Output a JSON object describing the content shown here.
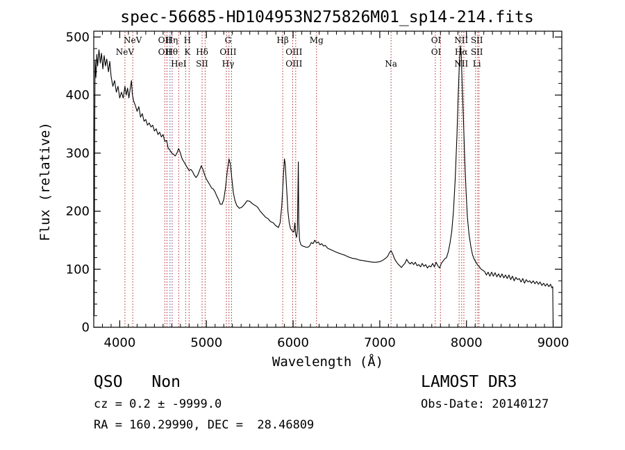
{
  "chart_data": {
    "type": "line",
    "title": "spec-56685-HD104953N275826M01_sp14-214.fits",
    "xlabel": "Wavelength (Å)",
    "ylabel": "Flux (relative)",
    "xlim": [
      3700,
      9100
    ],
    "ylim": [
      0,
      510
    ],
    "x_ticks": [
      4000,
      5000,
      6000,
      7000,
      8000,
      9000
    ],
    "y_ticks": [
      0,
      100,
      200,
      300,
      400,
      500
    ],
    "grid": false,
    "series": [
      {
        "name": "spectrum",
        "color": "#000000",
        "points": [
          [
            3705,
            20
          ],
          [
            3710,
            300
          ],
          [
            3715,
            460
          ],
          [
            3725,
            430
          ],
          [
            3735,
            470
          ],
          [
            3745,
            450
          ],
          [
            3760,
            478
          ],
          [
            3775,
            455
          ],
          [
            3790,
            472
          ],
          [
            3805,
            445
          ],
          [
            3820,
            468
          ],
          [
            3835,
            450
          ],
          [
            3850,
            462
          ],
          [
            3870,
            440
          ],
          [
            3885,
            458
          ],
          [
            3900,
            432
          ],
          [
            3920,
            415
          ],
          [
            3940,
            425
          ],
          [
            3960,
            405
          ],
          [
            3980,
            415
          ],
          [
            4000,
            395
          ],
          [
            4020,
            405
          ],
          [
            4040,
            395
          ],
          [
            4060,
            415
          ],
          [
            4075,
            400
          ],
          [
            4090,
            412
          ],
          [
            4105,
            395
          ],
          [
            4120,
            410
          ],
          [
            4135,
            425
          ],
          [
            4145,
            402
          ],
          [
            4160,
            390
          ],
          [
            4180,
            382
          ],
          [
            4200,
            372
          ],
          [
            4220,
            380
          ],
          [
            4240,
            362
          ],
          [
            4260,
            368
          ],
          [
            4280,
            355
          ],
          [
            4300,
            358
          ],
          [
            4320,
            348
          ],
          [
            4340,
            352
          ],
          [
            4360,
            345
          ],
          [
            4380,
            348
          ],
          [
            4400,
            338
          ],
          [
            4420,
            342
          ],
          [
            4440,
            332
          ],
          [
            4460,
            336
          ],
          [
            4480,
            328
          ],
          [
            4500,
            332
          ],
          [
            4520,
            320
          ],
          [
            4540,
            322
          ],
          [
            4560,
            308
          ],
          [
            4580,
            305
          ],
          [
            4600,
            300
          ],
          [
            4620,
            298
          ],
          [
            4640,
            295
          ],
          [
            4660,
            300
          ],
          [
            4680,
            308
          ],
          [
            4700,
            300
          ],
          [
            4720,
            290
          ],
          [
            4740,
            285
          ],
          [
            4760,
            280
          ],
          [
            4780,
            275
          ],
          [
            4800,
            270
          ],
          [
            4820,
            272
          ],
          [
            4840,
            268
          ],
          [
            4860,
            262
          ],
          [
            4880,
            258
          ],
          [
            4900,
            262
          ],
          [
            4920,
            270
          ],
          [
            4940,
            278
          ],
          [
            4960,
            272
          ],
          [
            4980,
            262
          ],
          [
            5000,
            255
          ],
          [
            5020,
            250
          ],
          [
            5040,
            245
          ],
          [
            5060,
            240
          ],
          [
            5080,
            238
          ],
          [
            5100,
            233
          ],
          [
            5120,
            226
          ],
          [
            5140,
            220
          ],
          [
            5160,
            212
          ],
          [
            5180,
            212
          ],
          [
            5200,
            220
          ],
          [
            5220,
            240
          ],
          [
            5240,
            268
          ],
          [
            5260,
            290
          ],
          [
            5275,
            282
          ],
          [
            5290,
            260
          ],
          [
            5310,
            232
          ],
          [
            5330,
            218
          ],
          [
            5350,
            210
          ],
          [
            5380,
            205
          ],
          [
            5410,
            207
          ],
          [
            5440,
            212
          ],
          [
            5470,
            218
          ],
          [
            5500,
            217
          ],
          [
            5530,
            213
          ],
          [
            5560,
            210
          ],
          [
            5590,
            207
          ],
          [
            5620,
            200
          ],
          [
            5650,
            195
          ],
          [
            5680,
            190
          ],
          [
            5710,
            187
          ],
          [
            5740,
            182
          ],
          [
            5770,
            180
          ],
          [
            5800,
            175
          ],
          [
            5830,
            172
          ],
          [
            5850,
            180
          ],
          [
            5870,
            210
          ],
          [
            5890,
            265
          ],
          [
            5900,
            290
          ],
          [
            5910,
            280
          ],
          [
            5925,
            240
          ],
          [
            5940,
            200
          ],
          [
            5955,
            180
          ],
          [
            5970,
            170
          ],
          [
            5990,
            166
          ],
          [
            6010,
            164
          ],
          [
            6020,
            180
          ],
          [
            6030,
            160
          ],
          [
            6040,
            155
          ],
          [
            6050,
            168
          ],
          [
            6060,
            285
          ],
          [
            6065,
            180
          ],
          [
            6075,
            150
          ],
          [
            6090,
            142
          ],
          [
            6110,
            140
          ],
          [
            6130,
            139
          ],
          [
            6150,
            138
          ],
          [
            6170,
            138
          ],
          [
            6190,
            140
          ],
          [
            6210,
            146
          ],
          [
            6230,
            144
          ],
          [
            6250,
            150
          ],
          [
            6270,
            145
          ],
          [
            6290,
            147
          ],
          [
            6310,
            142
          ],
          [
            6330,
            144
          ],
          [
            6350,
            140
          ],
          [
            6370,
            141
          ],
          [
            6400,
            136
          ],
          [
            6430,
            134
          ],
          [
            6460,
            132
          ],
          [
            6490,
            130
          ],
          [
            6520,
            128
          ],
          [
            6560,
            126
          ],
          [
            6600,
            124
          ],
          [
            6640,
            121
          ],
          [
            6680,
            119
          ],
          [
            6720,
            118
          ],
          [
            6760,
            116
          ],
          [
            6800,
            115
          ],
          [
            6840,
            114
          ],
          [
            6880,
            113
          ],
          [
            6920,
            112
          ],
          [
            6960,
            112
          ],
          [
            7000,
            113
          ],
          [
            7030,
            115
          ],
          [
            7060,
            118
          ],
          [
            7090,
            122
          ],
          [
            7110,
            128
          ],
          [
            7130,
            132
          ],
          [
            7150,
            126
          ],
          [
            7170,
            118
          ],
          [
            7190,
            113
          ],
          [
            7210,
            109
          ],
          [
            7230,
            106
          ],
          [
            7250,
            103
          ],
          [
            7270,
            107
          ],
          [
            7290,
            110
          ],
          [
            7310,
            117
          ],
          [
            7330,
            112
          ],
          [
            7350,
            109
          ],
          [
            7370,
            112
          ],
          [
            7390,
            108
          ],
          [
            7410,
            112
          ],
          [
            7430,
            106
          ],
          [
            7450,
            108
          ],
          [
            7470,
            104
          ],
          [
            7490,
            110
          ],
          [
            7510,
            105
          ],
          [
            7530,
            108
          ],
          [
            7550,
            102
          ],
          [
            7570,
            106
          ],
          [
            7590,
            104
          ],
          [
            7610,
            110
          ],
          [
            7630,
            104
          ],
          [
            7650,
            112
          ],
          [
            7670,
            106
          ],
          [
            7690,
            102
          ],
          [
            7710,
            110
          ],
          [
            7730,
            114
          ],
          [
            7750,
            118
          ],
          [
            7770,
            120
          ],
          [
            7790,
            130
          ],
          [
            7810,
            145
          ],
          [
            7830,
            165
          ],
          [
            7850,
            200
          ],
          [
            7870,
            255
          ],
          [
            7890,
            330
          ],
          [
            7905,
            400
          ],
          [
            7920,
            460
          ],
          [
            7930,
            485
          ],
          [
            7940,
            470
          ],
          [
            7950,
            420
          ],
          [
            7965,
            360
          ],
          [
            7980,
            290
          ],
          [
            7995,
            235
          ],
          [
            8010,
            190
          ],
          [
            8030,
            160
          ],
          [
            8050,
            140
          ],
          [
            8070,
            125
          ],
          [
            8090,
            117
          ],
          [
            8110,
            112
          ],
          [
            8130,
            107
          ],
          [
            8150,
            104
          ],
          [
            8170,
            100
          ],
          [
            8190,
            98
          ],
          [
            8210,
            96
          ],
          [
            8230,
            90
          ],
          [
            8250,
            95
          ],
          [
            8270,
            88
          ],
          [
            8290,
            95
          ],
          [
            8310,
            88
          ],
          [
            8330,
            94
          ],
          [
            8350,
            87
          ],
          [
            8370,
            92
          ],
          [
            8390,
            86
          ],
          [
            8410,
            92
          ],
          [
            8430,
            85
          ],
          [
            8450,
            90
          ],
          [
            8470,
            84
          ],
          [
            8490,
            90
          ],
          [
            8510,
            82
          ],
          [
            8530,
            88
          ],
          [
            8550,
            80
          ],
          [
            8570,
            86
          ],
          [
            8590,
            82
          ],
          [
            8610,
            84
          ],
          [
            8630,
            78
          ],
          [
            8650,
            84
          ],
          [
            8670,
            76
          ],
          [
            8690,
            82
          ],
          [
            8710,
            78
          ],
          [
            8730,
            80
          ],
          [
            8750,
            76
          ],
          [
            8770,
            80
          ],
          [
            8790,
            75
          ],
          [
            8810,
            79
          ],
          [
            8830,
            74
          ],
          [
            8850,
            78
          ],
          [
            8870,
            72
          ],
          [
            8890,
            76
          ],
          [
            8910,
            71
          ],
          [
            8930,
            75
          ],
          [
            8950,
            70
          ],
          [
            8970,
            74
          ],
          [
            8985,
            68
          ],
          [
            8995,
            70
          ],
          [
            9000,
            2
          ]
        ]
      }
    ],
    "annotations": [
      {
        "name": "nev-lower",
        "wavelength": 4060,
        "lines": [
          "NeV"
        ],
        "row": 1
      },
      {
        "name": "nev-upper",
        "wavelength": 4150,
        "lines": [
          "NeV"
        ],
        "row": 0
      },
      {
        "name": "oii-oiii",
        "wavelength": 4520,
        "lines": [
          "OII",
          "OII"
        ],
        "row": 0,
        "join": true
      },
      {
        "name": "h-eta",
        "wavelength": 4600,
        "lines": [
          "Hη",
          "Hθ"
        ],
        "row": 0,
        "join": true
      },
      {
        "name": "hei",
        "wavelength": 4680,
        "lines": [
          "HeI"
        ],
        "row": 2
      },
      {
        "name": "h-k",
        "wavelength": 4780,
        "lines": [
          "H",
          "K"
        ],
        "row": 0
      },
      {
        "name": "sii-hdelta",
        "wavelength": 4950,
        "lines": [
          "Hδ",
          "SII"
        ],
        "row": 1
      },
      {
        "name": "g-band",
        "wavelength": 5250,
        "lines": [
          "G",
          "OIII",
          "Hγ"
        ],
        "row": 0
      },
      {
        "name": "h-beta",
        "wavelength": 5880,
        "lines": [
          "Hβ"
        ],
        "row": 0
      },
      {
        "name": "oiii",
        "wavelength": 6010,
        "lines": [
          "OIII",
          "OIII"
        ],
        "row": 1
      },
      {
        "name": "mg",
        "wavelength": 6270,
        "lines": [
          "Mg"
        ],
        "row": 0
      },
      {
        "name": "na",
        "wavelength": 7130,
        "lines": [
          "Na"
        ],
        "row": 2
      },
      {
        "name": "oi",
        "wavelength": 7650,
        "lines": [
          "OI",
          "OI"
        ],
        "row": 0
      },
      {
        "name": "h-alpha",
        "wavelength": 7940,
        "lines": [
          "NII",
          "Hα",
          "NII"
        ],
        "row": 0
      },
      {
        "name": "sii-li",
        "wavelength": 8120,
        "lines": [
          "SII",
          "SII",
          "Li"
        ],
        "row": 0
      }
    ],
    "marker_lines": [
      4060,
      4150,
      4520,
      4545,
      4605,
      4680,
      4760,
      4800,
      4950,
      4985,
      5230,
      5260,
      5290,
      5880,
      5995,
      6030,
      6270,
      7130,
      7640,
      7700,
      7915,
      7945,
      7970,
      8105,
      8130,
      8145
    ],
    "blue_marker_lines": [
      4580
    ]
  },
  "footer": {
    "class_label": "QSO",
    "subclass_label": "Non",
    "cz_line": "cz = 0.2 ± -9999.0",
    "coords_line": "RA = 160.29990, DEC =  28.46809",
    "survey_label": "LAMOST DR3",
    "obs_date_line": "Obs-Date: 20140127"
  }
}
